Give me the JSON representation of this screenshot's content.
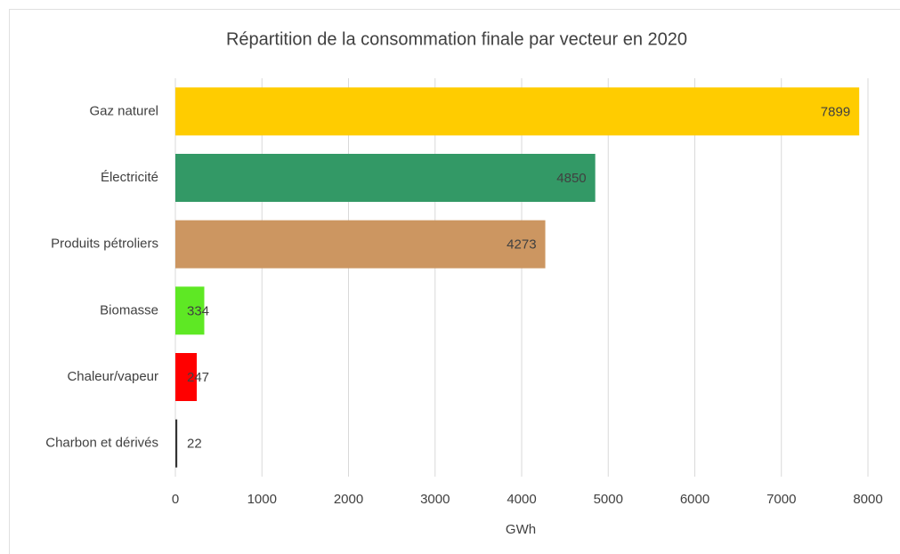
{
  "chart_data": {
    "type": "bar",
    "orientation": "horizontal",
    "title": "Répartition de la consommation finale par vecteur en 2020",
    "xlabel": "GWh",
    "categories": [
      "Gaz naturel",
      "Électricité",
      "Produits pétroliers",
      "Biomasse",
      "Chaleur/vapeur",
      "Charbon et dérivés"
    ],
    "values": [
      7899,
      4850,
      4273,
      334,
      247,
      22
    ],
    "colors": [
      "#ffcc00",
      "#339966",
      "#cc9661",
      "#5ee824",
      "#ff0000",
      "#333333"
    ],
    "xlim": [
      0,
      8000
    ],
    "xticks": [
      0,
      1000,
      2000,
      3000,
      4000,
      5000,
      6000,
      7000,
      8000
    ],
    "grid": true
  }
}
